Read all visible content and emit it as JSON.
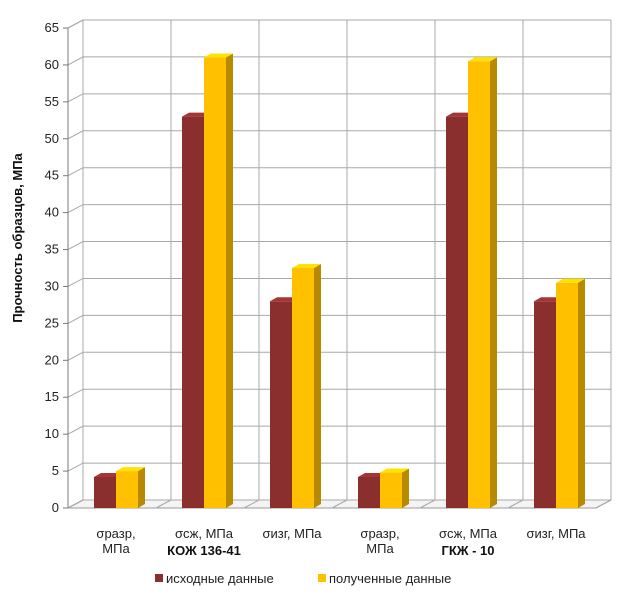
{
  "chart_data": {
    "type": "bar",
    "ylabel": "Прочность образцов, МПа",
    "ylim": [
      0,
      65
    ],
    "yticks": [
      0,
      5,
      10,
      15,
      20,
      25,
      30,
      35,
      40,
      45,
      50,
      55,
      60,
      65
    ],
    "categories": [
      [
        "σразр,",
        "МПа"
      ],
      [
        "σсж, МПа"
      ],
      [
        "σизг, МПа"
      ],
      [
        "σразр,",
        "МПа"
      ],
      [
        "σсж, МПа"
      ],
      [
        "σизг, МПа"
      ]
    ],
    "groups": [
      {
        "label": "КОЖ 136-41",
        "categories": [
          0,
          1,
          2
        ]
      },
      {
        "label": "ГКЖ - 10",
        "categories": [
          3,
          4,
          5
        ]
      }
    ],
    "series": [
      {
        "name": "исходные данные",
        "color": "#8b2e2e",
        "values": [
          4.2,
          53,
          28,
          4.2,
          53,
          28
        ]
      },
      {
        "name": "полученные данные",
        "color": "#ffc000",
        "values": [
          5,
          61,
          32.5,
          4.8,
          60.5,
          30.5
        ]
      }
    ],
    "grid": true,
    "legend_position": "bottom"
  }
}
